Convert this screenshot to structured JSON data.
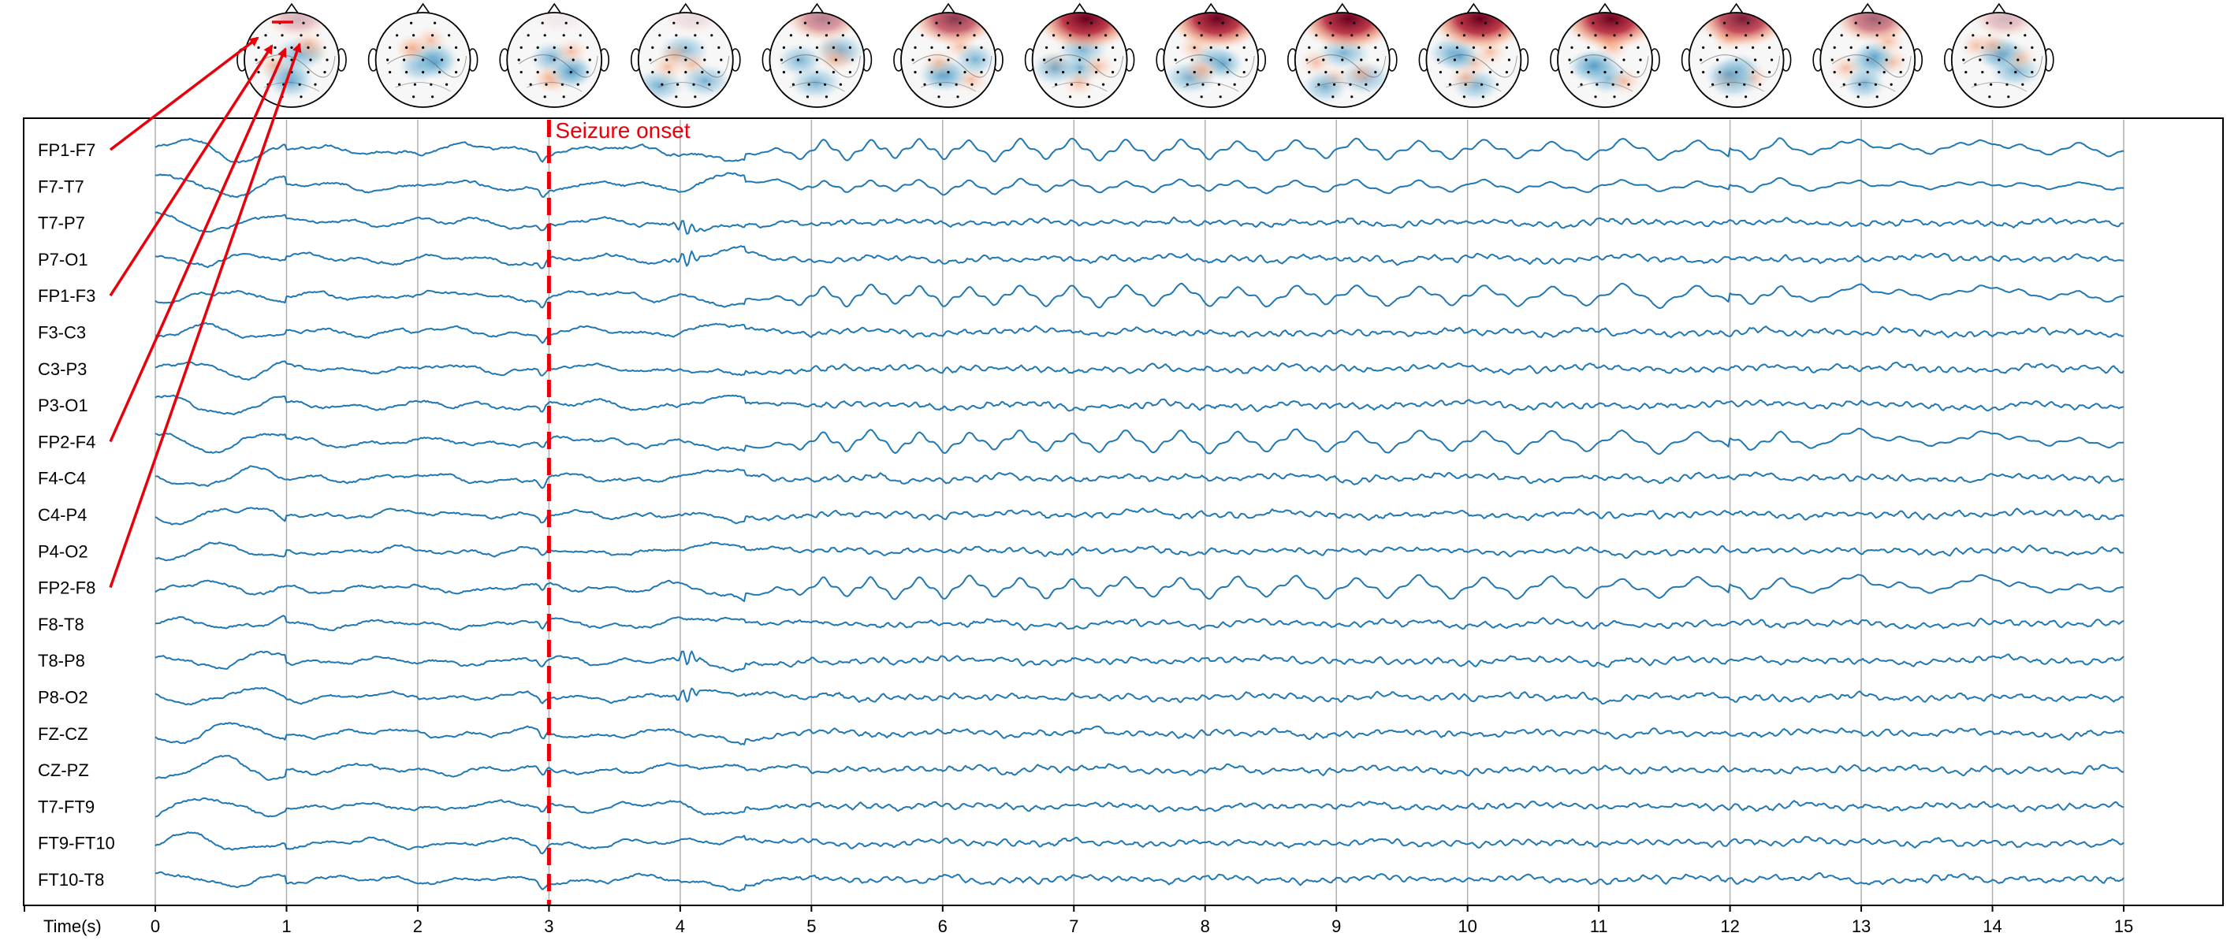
{
  "chart_data": {
    "type": "line",
    "xlabel": "Time(s)",
    "xlim": [
      0,
      15
    ],
    "x_ticks": [
      0,
      1,
      2,
      3,
      4,
      5,
      6,
      7,
      8,
      9,
      10,
      11,
      12,
      13,
      14,
      15
    ],
    "x_tick_labels": [
      "0",
      "1",
      "2",
      "3",
      "4",
      "5",
      "6",
      "7",
      "8",
      "9",
      "10",
      "11",
      "12",
      "13",
      "14",
      "15"
    ],
    "grid": "vertical lines at each second",
    "annotation": {
      "text": "Seizure onset",
      "x": 3,
      "color": "#e8000b",
      "style": "dashed vertical line"
    },
    "trace_color": "#1f77b4",
    "channels": [
      "FP1-F7",
      "F7-T7",
      "T7-P7",
      "P7-O1",
      "FP1-F3",
      "F3-C3",
      "C3-P3",
      "P3-O1",
      "FP2-F4",
      "F4-C4",
      "C4-P4",
      "P4-O2",
      "FP2-F8",
      "F8-T8",
      "T8-P8",
      "P8-O2",
      "FZ-CZ",
      "CZ-PZ",
      "T7-FT9",
      "FT9-FT10",
      "FT10-T8"
    ],
    "highlighted_channels": [
      "FP1-F7",
      "FP1-F3",
      "FP2-F4",
      "FP2-F8"
    ],
    "arrow_color": "#e8000b",
    "rhythmic_discharge_channels": [
      "FP1-F7",
      "F7-T7",
      "FP1-F3",
      "FP2-F4",
      "FP2-F8"
    ],
    "topomaps": {
      "count": 14,
      "colormap": "RdBu_r",
      "frontal_positive_intensity": [
        0.25,
        0.0,
        0.05,
        0.1,
        0.45,
        0.7,
        0.95,
        0.9,
        0.95,
        0.95,
        0.9,
        0.8,
        0.55,
        0.25
      ]
    }
  }
}
